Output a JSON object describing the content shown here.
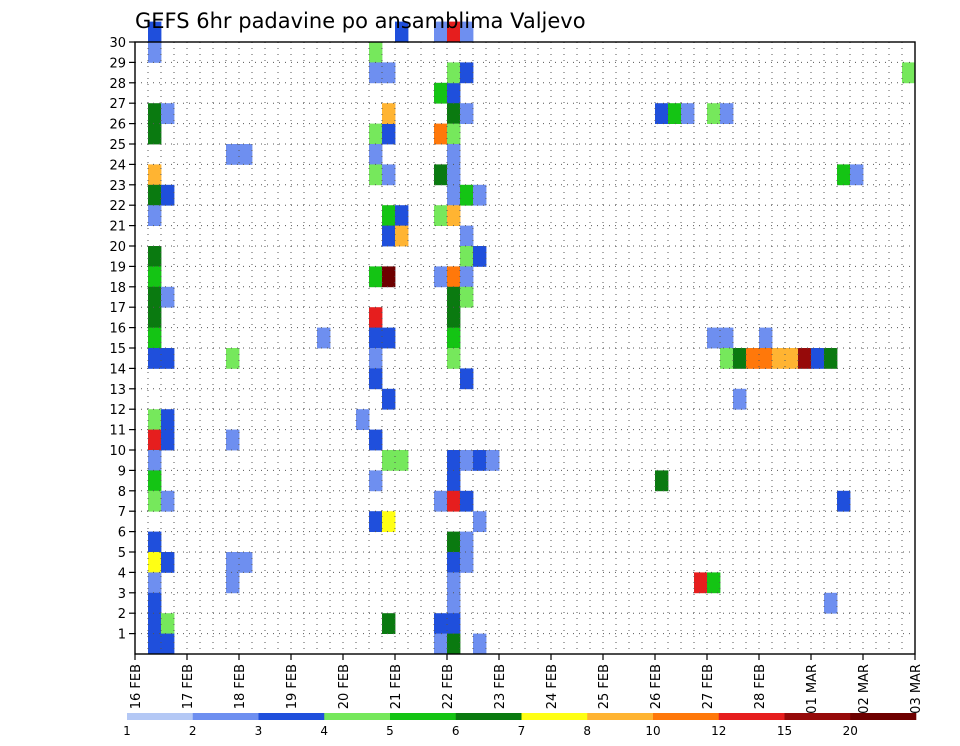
{
  "chart_data": {
    "type": "heatmap",
    "title": "GEFS 6hr padavine po ansamblima Valjevo",
    "xlabel": "",
    "ylabel": "",
    "x_ticks": [
      "16 FEB",
      "17 FEB",
      "18 FEB",
      "19 FEB",
      "20 FEB",
      "21 FEB",
      "22 FEB",
      "23 FEB",
      "24 FEB",
      "25 FEB",
      "26 FEB",
      "27 FEB",
      "28 FEB",
      "01 MAR",
      "02 MAR",
      "03 MAR"
    ],
    "x_range_steps_6h": [
      0,
      60
    ],
    "y_ticks": [
      1,
      2,
      3,
      4,
      5,
      6,
      7,
      8,
      9,
      10,
      11,
      12,
      13,
      14,
      15,
      16,
      17,
      18,
      19,
      20,
      21,
      22,
      23,
      24,
      25,
      26,
      27,
      28,
      29,
      30
    ],
    "y_range": [
      0,
      30
    ],
    "grid": true,
    "legend_placement": "bottom",
    "colorbar": {
      "labels": [
        "1",
        "2",
        "3",
        "4",
        "5",
        "6",
        "7",
        "8",
        "10",
        "12",
        "15",
        "20"
      ],
      "colors": [
        "#b4c8f5",
        "#6e8ff0",
        "#1f4fdc",
        "#76e85c",
        "#14c414",
        "#0a7a10",
        "#ffff14",
        "#ffb432",
        "#ff780a",
        "#e61e1e",
        "#960a0a",
        "#6e0000"
      ]
    },
    "cells": [
      [
        1,
        30,
        2
      ],
      [
        1,
        29,
        1
      ],
      [
        1,
        26,
        5
      ],
      [
        2,
        26,
        1
      ],
      [
        1,
        25,
        5
      ],
      [
        1,
        23,
        7
      ],
      [
        1,
        22,
        5
      ],
      [
        2,
        22,
        2
      ],
      [
        1,
        21,
        1
      ],
      [
        1,
        19,
        5
      ],
      [
        1,
        18,
        4
      ],
      [
        1,
        17,
        5
      ],
      [
        2,
        17,
        1
      ],
      [
        1,
        16,
        5
      ],
      [
        1,
        15,
        4
      ],
      [
        1,
        14,
        2
      ],
      [
        2,
        14,
        2
      ],
      [
        1,
        11,
        3
      ],
      [
        2,
        11,
        2
      ],
      [
        1,
        10,
        9
      ],
      [
        2,
        10,
        2
      ],
      [
        1,
        9,
        1
      ],
      [
        1,
        8,
        4
      ],
      [
        1,
        7,
        3
      ],
      [
        2,
        7,
        1
      ],
      [
        1,
        5,
        2
      ],
      [
        1,
        4,
        6
      ],
      [
        2,
        4,
        2
      ],
      [
        1,
        3,
        1
      ],
      [
        1,
        2,
        2
      ],
      [
        1,
        1,
        2
      ],
      [
        2,
        1,
        3
      ],
      [
        1,
        0,
        2
      ],
      [
        2,
        0,
        2
      ],
      [
        7,
        14,
        3
      ],
      [
        7,
        10,
        1
      ],
      [
        7,
        4,
        1
      ],
      [
        8,
        4,
        1
      ],
      [
        7,
        3,
        1
      ],
      [
        7,
        24,
        1
      ],
      [
        8,
        24,
        1
      ],
      [
        14,
        15,
        1
      ],
      [
        17,
        11,
        1
      ],
      [
        18,
        29,
        3
      ],
      [
        18,
        28,
        1
      ],
      [
        19,
        28,
        1
      ],
      [
        18,
        25,
        3
      ],
      [
        19,
        25,
        2
      ],
      [
        18,
        24,
        1
      ],
      [
        18,
        23,
        3
      ],
      [
        19,
        23,
        1
      ],
      [
        18,
        18,
        4
      ],
      [
        19,
        18,
        11
      ],
      [
        18,
        16,
        9
      ],
      [
        18,
        15,
        2
      ],
      [
        19,
        15,
        2
      ],
      [
        18,
        14,
        1
      ],
      [
        18,
        13,
        2
      ],
      [
        18,
        10,
        2
      ],
      [
        18,
        8,
        1
      ],
      [
        18,
        6,
        2
      ],
      [
        19,
        6,
        6
      ],
      [
        19,
        26,
        7
      ],
      [
        19,
        21,
        4
      ],
      [
        20,
        21,
        2
      ],
      [
        19,
        20,
        2
      ],
      [
        20,
        20,
        7
      ],
      [
        19,
        12,
        2
      ],
      [
        19,
        9,
        3
      ],
      [
        20,
        9,
        3
      ],
      [
        19,
        1,
        5
      ],
      [
        20,
        30,
        2
      ],
      [
        23,
        30,
        1
      ],
      [
        24,
        30,
        9
      ],
      [
        25,
        30,
        1
      ],
      [
        23,
        27,
        4
      ],
      [
        24,
        27,
        2
      ],
      [
        24,
        28,
        3
      ],
      [
        25,
        28,
        2
      ],
      [
        24,
        26,
        5
      ],
      [
        25,
        26,
        1
      ],
      [
        23,
        25,
        8
      ],
      [
        24,
        25,
        3
      ],
      [
        24,
        24,
        1
      ],
      [
        23,
        23,
        5
      ],
      [
        24,
        23,
        1
      ],
      [
        24,
        22,
        1
      ],
      [
        25,
        22,
        4
      ],
      [
        26,
        22,
        1
      ],
      [
        23,
        21,
        3
      ],
      [
        24,
        21,
        7
      ],
      [
        25,
        20,
        1
      ],
      [
        25,
        19,
        3
      ],
      [
        26,
        19,
        2
      ],
      [
        23,
        18,
        1
      ],
      [
        24,
        18,
        8
      ],
      [
        25,
        18,
        1
      ],
      [
        24,
        17,
        5
      ],
      [
        25,
        17,
        3
      ],
      [
        24,
        16,
        5
      ],
      [
        24,
        15,
        4
      ],
      [
        24,
        14,
        3
      ],
      [
        25,
        13,
        2
      ],
      [
        24,
        9,
        2
      ],
      [
        25,
        9,
        1
      ],
      [
        26,
        9,
        2
      ],
      [
        24,
        8,
        2
      ],
      [
        23,
        7,
        1
      ],
      [
        24,
        7,
        9
      ],
      [
        25,
        7,
        2
      ],
      [
        26,
        6,
        1
      ],
      [
        24,
        5,
        5
      ],
      [
        25,
        5,
        1
      ],
      [
        24,
        4,
        2
      ],
      [
        25,
        4,
        1
      ],
      [
        24,
        3,
        1
      ],
      [
        24,
        2,
        1
      ],
      [
        23,
        1,
        2
      ],
      [
        24,
        1,
        2
      ],
      [
        23,
        0,
        1
      ],
      [
        24,
        0,
        5
      ],
      [
        26,
        0,
        1
      ],
      [
        27,
        9,
        1
      ],
      [
        40,
        26,
        2
      ],
      [
        41,
        26,
        4
      ],
      [
        42,
        26,
        1
      ],
      [
        44,
        26,
        3
      ],
      [
        45,
        26,
        1
      ],
      [
        40,
        8,
        5
      ],
      [
        43,
        3,
        9
      ],
      [
        44,
        3,
        4
      ],
      [
        44,
        15,
        1
      ],
      [
        45,
        15,
        1
      ],
      [
        48,
        15,
        1
      ],
      [
        45,
        14,
        3
      ],
      [
        46,
        14,
        5
      ],
      [
        47,
        14,
        8
      ],
      [
        48,
        14,
        8
      ],
      [
        49,
        14,
        7
      ],
      [
        50,
        14,
        7
      ],
      [
        51,
        14,
        10
      ],
      [
        52,
        14,
        2
      ],
      [
        53,
        14,
        5
      ],
      [
        46,
        12,
        1
      ],
      [
        54,
        23,
        4
      ],
      [
        55,
        23,
        1
      ],
      [
        54,
        7,
        2
      ],
      [
        53,
        2,
        1
      ],
      [
        59,
        28,
        3
      ]
    ]
  }
}
